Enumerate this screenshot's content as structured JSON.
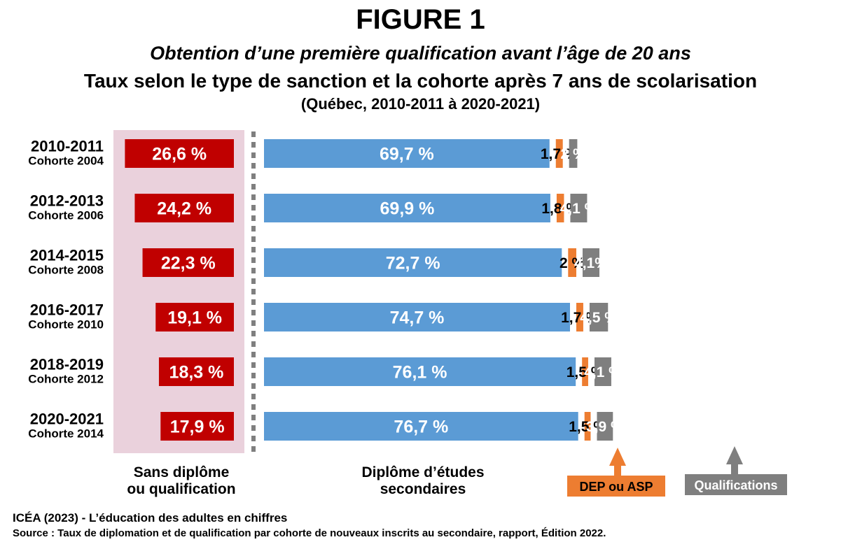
{
  "header": {
    "figure": "FIGURE 1",
    "subtitle_italic": "Obtention d’une première qualification avant l’âge de 20 ans",
    "subtitle": "Taux selon le type de sanction et la cohorte après 7 ans de scolarisation",
    "subtitle_small": "(Québec, 2010-2011 à 2020-2021)"
  },
  "chart_data": {
    "type": "bar",
    "orientation": "horizontal",
    "categories": [
      {
        "year": "2010-2011",
        "cohort": "Cohorte 2004"
      },
      {
        "year": "2012-2013",
        "cohort": "Cohorte 2006"
      },
      {
        "year": "2014-2015",
        "cohort": "Cohorte 2008"
      },
      {
        "year": "2016-2017",
        "cohort": "Cohorte 2010"
      },
      {
        "year": "2018-2019",
        "cohort": "Cohorte 2012"
      },
      {
        "year": "2020-2021",
        "cohort": "Cohorte 2014"
      }
    ],
    "series": [
      {
        "name": "Sans diplôme ou qualification",
        "color": "#c00000",
        "values": [
          26.6,
          24.2,
          22.3,
          19.1,
          18.3,
          17.9
        ],
        "labels": [
          "26,6 %",
          "24,2 %",
          "22,3 %",
          "19,1 %",
          "18,3 %",
          "17,9 %"
        ]
      },
      {
        "name": "Diplôme d’études secondaires",
        "color": "#5b9bd5",
        "values": [
          69.7,
          69.9,
          72.7,
          74.7,
          76.1,
          76.7
        ],
        "labels": [
          "69,7 %",
          "69,9 %",
          "72,7 %",
          "74,7 %",
          "76,1 %",
          "76,7 %"
        ]
      },
      {
        "name": "DEP ou ASP",
        "color": "#ed7d31",
        "values": [
          1.7,
          1.8,
          2,
          1.7,
          1.5,
          1.5
        ],
        "labels": [
          "1,7 %",
          "1,8 %",
          "2 %",
          "1,7 %",
          "1,5 %",
          "1,5 %"
        ]
      },
      {
        "name": "Qualifications",
        "color": "#7f7f7f",
        "values": [
          2,
          4.1,
          4.1,
          4.5,
          4.1,
          3.9
        ],
        "labels": [
          "2 %",
          "4,1 %",
          "4,1%",
          "4,5 %",
          "4,1 %",
          "3,9 %"
        ]
      }
    ],
    "bottom_labels": {
      "sans_line1": "Sans diplôme",
      "sans_line2": "ou qualification",
      "des_line1": "Diplôme d’études",
      "des_line2": "secondaires",
      "dep_box": "DEP ou ASP",
      "qual_box": "Qualifications"
    },
    "shaded_band_color": "#ead1dc",
    "grid": false
  },
  "source": {
    "line1": "ICÉA (2023) - L’éducation des adultes en chiffres",
    "line2": "Source : Taux de diplomation et de qualification par cohorte de nouveaux inscrits au secondaire, rapport, Édition 2022."
  }
}
